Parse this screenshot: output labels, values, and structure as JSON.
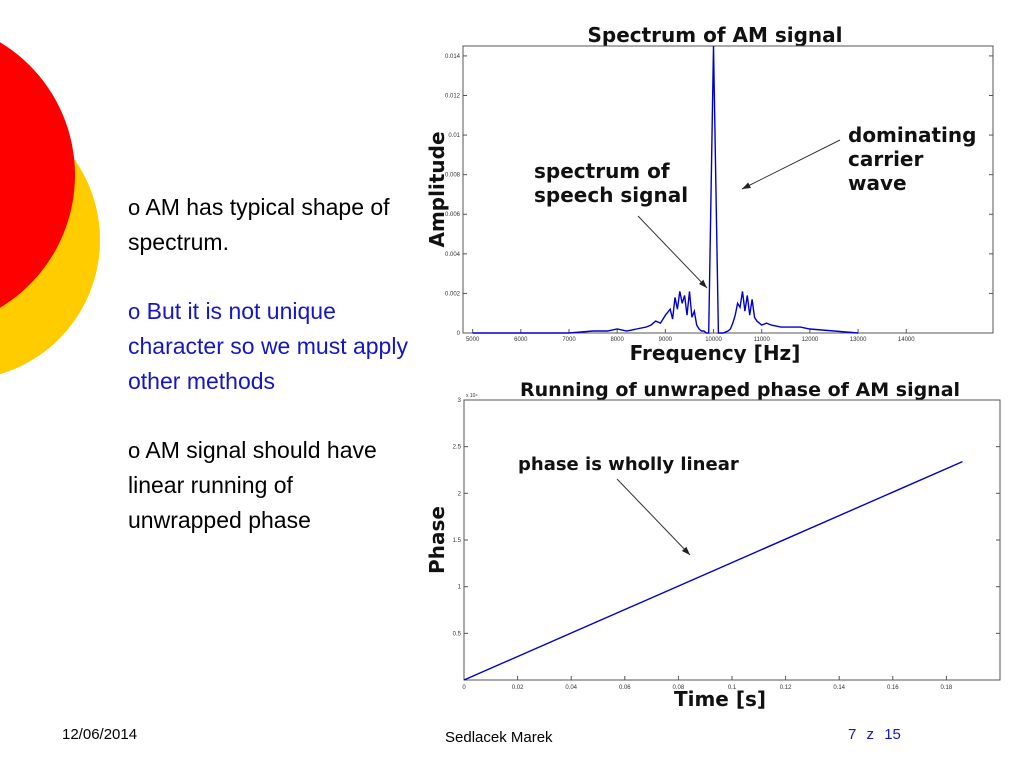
{
  "slide": {
    "bullets": [
      {
        "marker": "o",
        "text": "AM has typical shape of spectrum.",
        "color": "#000000"
      },
      {
        "marker": "o",
        "text": "But it is not unique character so we must apply other methods",
        "color": "#1515c8"
      },
      {
        "marker": "o",
        "text": "AM signal should have linear running of unwrapped phase",
        "color": "#000000"
      }
    ],
    "footer": {
      "date": "12/06/2014",
      "author": "Sedlacek Marek",
      "page": "7",
      "page_sep": "z",
      "page_total": "15"
    }
  },
  "chart_data": [
    {
      "type": "line",
      "title": "Spectrum of AM signal",
      "xlabel": "Frequency [Hz]",
      "ylabel": "Amplitude",
      "xlim": [
        4800,
        15800
      ],
      "ylim": [
        0,
        0.0145
      ],
      "xticks": [
        "5000",
        "6000",
        "7000",
        "8000",
        "9000",
        "10000",
        "11000",
        "12000",
        "13000",
        "14000"
      ],
      "yticks": [
        "0",
        "0.002",
        "0.004",
        "0.006",
        "0.008",
        "0.01",
        "0.012",
        "0.014"
      ],
      "series": [
        {
          "color": "#0000cc",
          "x": [
            5000,
            6000,
            7000,
            7500,
            7800,
            8000,
            8200,
            8400,
            8600,
            8700,
            8800,
            8900,
            9000,
            9100,
            9150,
            9200,
            9250,
            9300,
            9350,
            9400,
            9450,
            9500,
            9550,
            9600,
            9650,
            9700,
            9750,
            9800,
            9850,
            9900,
            10000,
            10100,
            10200,
            10300,
            10350,
            10400,
            10450,
            10500,
            10550,
            10600,
            10650,
            10700,
            10750,
            10800,
            10850,
            10900,
            11000,
            11100,
            11200,
            11400,
            11600,
            11800,
            12000,
            12500,
            13000
          ],
          "y": [
            0,
            0,
            0,
            0.0001,
            0.0001,
            0.0002,
            0.0001,
            0.0002,
            0.0003,
            0.0004,
            0.0006,
            0.0005,
            0.0009,
            0.0012,
            0.0007,
            0.0018,
            0.0012,
            0.0021,
            0.0015,
            0.0019,
            0.0009,
            0.0021,
            0.0008,
            0.0011,
            0.0004,
            0.0002,
            0.0001,
            0.0001,
            0,
            0,
            0.0145,
            0,
            0,
            0.0001,
            0.0002,
            0.0005,
            0.0009,
            0.0015,
            0.0013,
            0.0021,
            0.0011,
            0.0019,
            0.0009,
            0.0017,
            0.0008,
            0.0006,
            0.0004,
            0.0005,
            0.0004,
            0.0003,
            0.0003,
            0.0003,
            0.0002,
            0.0001,
            0
          ]
        }
      ],
      "annotations": [
        {
          "text": "dominating carrier wave",
          "lines": [
            "dominating",
            "carrier",
            "wave"
          ]
        },
        {
          "text": "spectrum of speech signal",
          "lines": [
            "spectrum of",
            "speech signal"
          ]
        }
      ]
    },
    {
      "type": "line",
      "title": "Running of unwraped phase of AM signal",
      "xlabel": "Time [s]",
      "ylabel": "Phase",
      "y_multiplier": "x 10⁴",
      "xlim": [
        0,
        0.2
      ],
      "ylim": [
        0,
        30000
      ],
      "xticks": [
        "0",
        "0.02",
        "0.04",
        "0.06",
        "0.08",
        "0.1",
        "0.12",
        "0.14",
        "0.16",
        "0.18"
      ],
      "yticks": [
        "0.5",
        "1",
        "1.5",
        "2",
        "2.5",
        "3"
      ],
      "series": [
        {
          "color": "#0000cc",
          "x": [
            0,
            0.186
          ],
          "y": [
            0,
            23400
          ]
        }
      ],
      "annotations": [
        {
          "text": "phase is wholly linear"
        }
      ]
    }
  ]
}
